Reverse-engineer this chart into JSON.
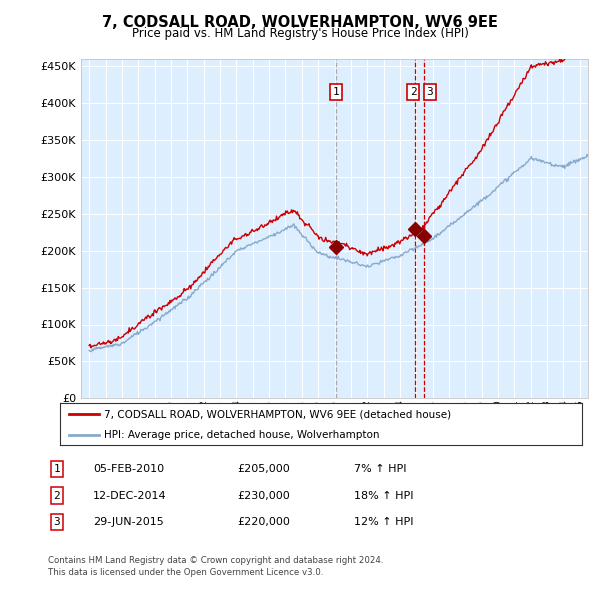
{
  "title": "7, CODSALL ROAD, WOLVERHAMPTON, WV6 9EE",
  "subtitle": "Price paid vs. HM Land Registry's House Price Index (HPI)",
  "legend_line1": "7, CODSALL ROAD, WOLVERHAMPTON, WV6 9EE (detached house)",
  "legend_line2": "HPI: Average price, detached house, Wolverhampton",
  "footer1": "Contains HM Land Registry data © Crown copyright and database right 2024.",
  "footer2": "This data is licensed under the Open Government Licence v3.0.",
  "table": [
    {
      "num": "1",
      "date": "05-FEB-2010",
      "price": "£205,000",
      "hpi": "7% ↑ HPI"
    },
    {
      "num": "2",
      "date": "12-DEC-2014",
      "price": "£230,000",
      "hpi": "18% ↑ HPI"
    },
    {
      "num": "3",
      "date": "29-JUN-2015",
      "price": "£220,000",
      "hpi": "12% ↑ HPI"
    }
  ],
  "sale_dates_decimal": [
    2010.09,
    2014.95,
    2015.49
  ],
  "sale_prices": [
    205000,
    230000,
    220000
  ],
  "sale_labels": [
    "1",
    "2",
    "3"
  ],
  "vline1_date": 2010.09,
  "vline1_color": "#aaaaaa",
  "vline1_style": "--",
  "vline23_dates": [
    2014.95,
    2015.49
  ],
  "vline23_color": "#cc0000",
  "vline23_style": "--",
  "red_line_color": "#cc0000",
  "blue_line_color": "#88aacc",
  "background_color": "#ddeeff",
  "grid_color": "#ffffff",
  "ylim": [
    0,
    460000
  ],
  "yticks": [
    0,
    50000,
    100000,
    150000,
    200000,
    250000,
    300000,
    350000,
    400000,
    450000
  ],
  "xmin": 1994.5,
  "xmax": 2025.5
}
